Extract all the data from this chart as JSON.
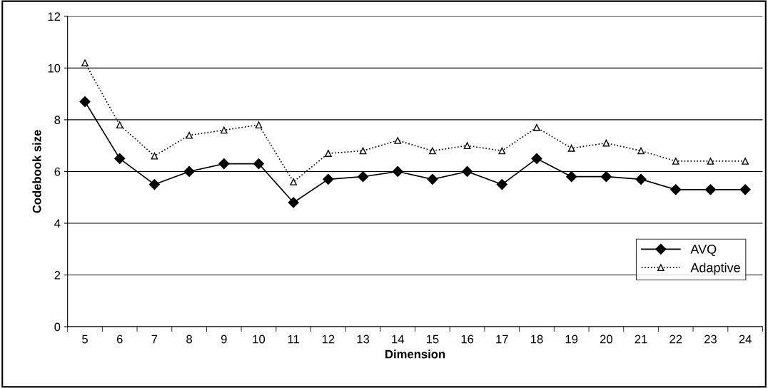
{
  "chart_data": {
    "type": "line",
    "xlabel": "Dimension",
    "ylabel": "Codebook size",
    "categories": [
      "5",
      "6",
      "7",
      "8",
      "9",
      "10",
      "11",
      "12",
      "13",
      "14",
      "15",
      "16",
      "17",
      "18",
      "19",
      "20",
      "21",
      "22",
      "23",
      "24"
    ],
    "series": [
      {
        "name": "AVQ",
        "color": "#000000",
        "marker": "diamond",
        "line_style": "solid",
        "values": [
          8.7,
          6.5,
          5.5,
          6.0,
          6.3,
          6.3,
          4.8,
          5.7,
          5.8,
          6.0,
          5.7,
          6.0,
          5.5,
          6.5,
          5.8,
          5.8,
          5.7,
          5.3,
          5.3,
          5.3
        ]
      },
      {
        "name": "Adaptive",
        "color": "#000000",
        "marker": "triangle",
        "line_style": "dotted",
        "values": [
          10.2,
          7.8,
          6.6,
          7.4,
          7.6,
          7.8,
          5.6,
          6.7,
          6.8,
          7.2,
          6.8,
          7.0,
          6.8,
          7.7,
          6.9,
          7.1,
          6.8,
          6.4,
          6.4,
          6.4
        ]
      }
    ],
    "ylim": [
      0,
      12
    ],
    "yticks": [
      0,
      2,
      4,
      6,
      8,
      10,
      12
    ],
    "grid": "y",
    "legend": "lower right"
  }
}
